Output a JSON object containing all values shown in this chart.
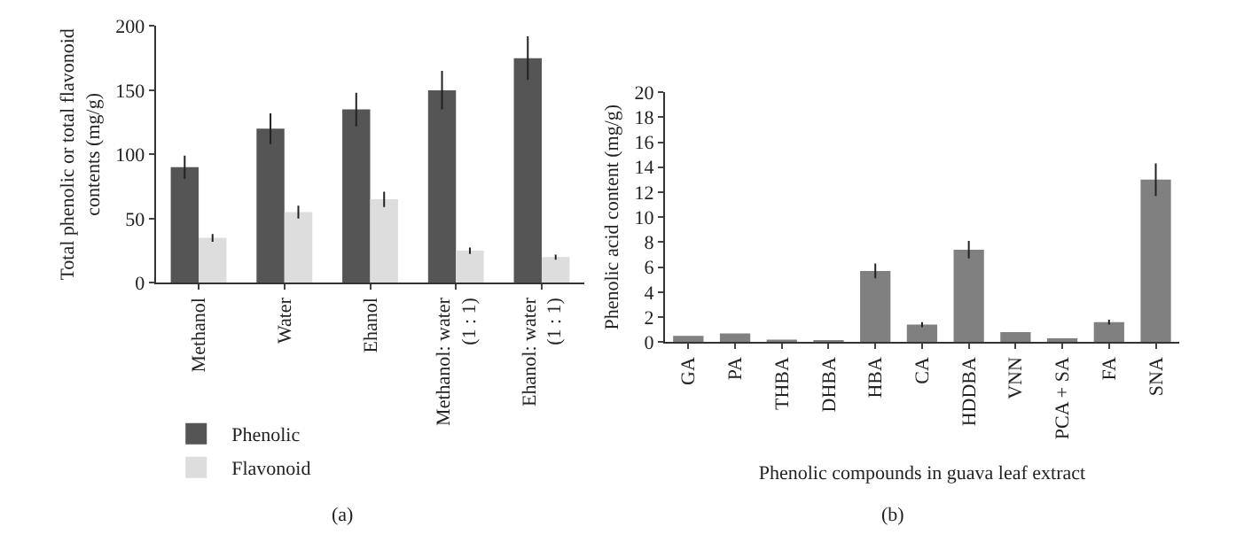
{
  "chart_data": [
    {
      "type": "bar",
      "ylabel": "Total phenolic or total flavonoid\ncontents (mg/g)",
      "annotations": [
        "(a)"
      ],
      "categories": [
        "Methanol",
        "Water",
        "Ehanol",
        "Methanol: water\n(1 : 1)",
        "Ehanol: water\n(1 : 1)"
      ],
      "series": [
        {
          "name": "Phenolic",
          "color": "#555555",
          "values": [
            90,
            120,
            135,
            150,
            175
          ],
          "errors": [
            9,
            12,
            13,
            15,
            17
          ]
        },
        {
          "name": "Flavonoid",
          "color": "#dddddd",
          "values": [
            35,
            55,
            65,
            25,
            20
          ],
          "errors": [
            3,
            5,
            6,
            2.5,
            2
          ]
        }
      ],
      "ylim": [
        0,
        200
      ],
      "yticks": [
        0,
        50,
        100,
        150,
        200
      ],
      "legend": "bottom left"
    },
    {
      "type": "bar",
      "xlabel": "Phenolic compounds in guava leaf extract",
      "ylabel": "Phenolic acid content (mg/g)",
      "annotations": [
        "(b)"
      ],
      "categories": [
        "GA",
        "PA",
        "THBA",
        "DHBA",
        "HBA",
        "CA",
        "HDDBA",
        "VNN",
        "PCA + SA",
        "FA",
        "SNA"
      ],
      "series": [
        {
          "color": "#808080",
          "values": [
            0.5,
            0.7,
            0.2,
            0.1,
            5.7,
            1.4,
            7.4,
            0.8,
            0.3,
            1.6,
            13
          ],
          "errors": [
            null,
            null,
            null,
            null,
            0.6,
            0.2,
            0.7,
            null,
            null,
            0.2,
            1.3
          ]
        }
      ],
      "ylim": [
        0,
        20
      ],
      "yticks": [
        0,
        2,
        4,
        6,
        8,
        10,
        12,
        14,
        16,
        18,
        20
      ]
    }
  ]
}
